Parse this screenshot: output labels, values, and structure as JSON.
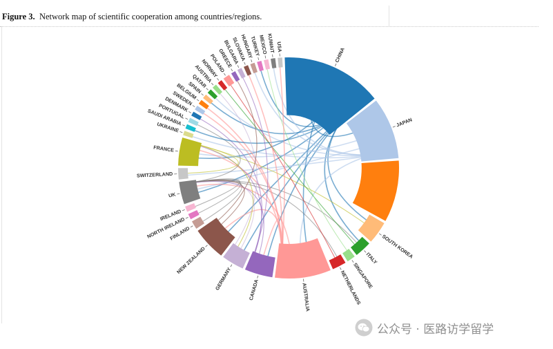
{
  "caption": {
    "figure_label": "Figure 3.",
    "text": "Network map of scientific cooperation among countries/regions."
  },
  "chart_data": {
    "type": "chord",
    "nodes": [
      {
        "name": "CHINA",
        "color": "#1f77b4",
        "weight": 18
      },
      {
        "name": "JAPAN",
        "color": "#aec7e8",
        "weight": 11
      },
      {
        "name": "",
        "color": "#ff7f0e",
        "weight": 11
      },
      {
        "name": "SOUTH KOREA",
        "color": "#ffbb78",
        "weight": 4
      },
      {
        "name": "ITALY",
        "color": "#2ca02c",
        "weight": 3
      },
      {
        "name": "SINGAPORE",
        "color": "#98df8a",
        "weight": 1.5
      },
      {
        "name": "NETHERLANDS",
        "color": "#d62728",
        "weight": 2.5
      },
      {
        "name": "AUSTRALIA",
        "color": "#ff9896",
        "weight": 10
      },
      {
        "name": "CANADA",
        "color": "#9467bd",
        "weight": 5
      },
      {
        "name": "GERMANY",
        "color": "#c5b0d5",
        "weight": 4
      },
      {
        "name": "NEW ZEALAND",
        "color": "#8c564b",
        "weight": 6
      },
      {
        "name": "FINLAND",
        "color": "#c49c94",
        "weight": 1.5
      },
      {
        "name": "NORTH IRELAND",
        "color": "#e377c2",
        "weight": 1
      },
      {
        "name": "IRELAND",
        "color": "#f7b6d2",
        "weight": 1
      },
      {
        "name": "UK",
        "color": "#7f7f7f",
        "weight": 4
      },
      {
        "name": "SWITZERLAND",
        "color": "#c7c7c7",
        "weight": 2
      },
      {
        "name": "FRANCE",
        "color": "#bcbd22",
        "weight": 5
      },
      {
        "name": "UKRAINE",
        "color": "#dbdb8d",
        "weight": 0.8
      },
      {
        "name": "SAUDI ARABIA",
        "color": "#17becf",
        "weight": 0.8
      },
      {
        "name": "PORTUGAL",
        "color": "#9edae5",
        "weight": 0.8
      },
      {
        "name": "DENMARK",
        "color": "#1f77b4",
        "weight": 0.8
      },
      {
        "name": "SWEDEN",
        "color": "#aec7e8",
        "weight": 0.8
      },
      {
        "name": "BELGIUM",
        "color": "#ff7f0e",
        "weight": 0.8
      },
      {
        "name": "SPAIN",
        "color": "#ffbb78",
        "weight": 0.8
      },
      {
        "name": "QATAR",
        "color": "#2ca02c",
        "weight": 0.8
      },
      {
        "name": "AUSTRIA",
        "color": "#98df8a",
        "weight": 0.8
      },
      {
        "name": "NORWAY",
        "color": "#d62728",
        "weight": 0.8
      },
      {
        "name": "POLAND",
        "color": "#ff9896",
        "weight": 1.2
      },
      {
        "name": "GREECE",
        "color": "#9467bd",
        "weight": 0.8
      },
      {
        "name": "BULGARIA",
        "color": "#c5b0d5",
        "weight": 0.8
      },
      {
        "name": "SLOVAKIA",
        "color": "#8c564b",
        "weight": 0.8
      },
      {
        "name": "HUNGARY",
        "color": "#c49c94",
        "weight": 0.8
      },
      {
        "name": "TURKEY",
        "color": "#e377c2",
        "weight": 0.8
      },
      {
        "name": "MEXICO",
        "color": "#f7b6d2",
        "weight": 0.8
      },
      {
        "name": "KUWAIT",
        "color": "#7f7f7f",
        "weight": 0.8
      },
      {
        "name": "USA",
        "color": "#c7c7c7",
        "weight": 0.8
      }
    ],
    "links": [
      [
        "CHINA",
        "JAPAN"
      ],
      [
        "CHINA",
        "AUSTRALIA"
      ],
      [
        "CHINA",
        "FRANCE"
      ],
      [
        "CHINA",
        "UK"
      ],
      [
        "CHINA",
        "CANADA"
      ],
      [
        "CHINA",
        "SOUTH KOREA"
      ],
      [
        "CHINA",
        "GERMANY"
      ],
      [
        "CHINA",
        "NEW ZEALAND"
      ],
      [
        "CHINA",
        "ITALY"
      ],
      [
        "JAPAN",
        "FRANCE"
      ],
      [
        "JAPAN",
        "UK"
      ],
      [
        "JAPAN",
        "AUSTRALIA"
      ],
      [
        "JAPAN",
        "SWITZERLAND"
      ],
      [
        "AUSTRALIA",
        "UK"
      ],
      [
        "AUSTRALIA",
        "NEW ZEALAND"
      ],
      [
        "AUSTRALIA",
        "FRANCE"
      ],
      [
        "AUSTRALIA",
        "CANADA"
      ],
      [
        "CANADA",
        "UK"
      ],
      [
        "CANADA",
        "FRANCE"
      ],
      [
        "GERMANY",
        "UK"
      ],
      [
        "GERMANY",
        "FRANCE"
      ],
      [
        "ITALY",
        "UK"
      ],
      [
        "NETHERLANDS",
        "UK"
      ],
      [
        "SOUTH KOREA",
        "FRANCE"
      ],
      [
        "FINLAND",
        "UK"
      ],
      [
        "NEW ZEALAND",
        "UK"
      ],
      [
        "SWITZERLAND",
        "FRANCE"
      ],
      [
        "POLAND",
        "NETHERLANDS"
      ],
      [
        "BELGIUM",
        "AUSTRALIA"
      ],
      [
        "NORWAY",
        "ITALY"
      ],
      [
        "SPAIN",
        "CHINA"
      ],
      [
        "QATAR",
        "JAPAN"
      ],
      [
        "SWEDEN",
        "AUSTRALIA"
      ],
      [
        "DENMARK",
        "CANADA"
      ],
      [
        "PORTUGAL",
        "UK"
      ],
      [
        "SAUDI ARABIA",
        "CHINA"
      ],
      [
        "UKRAINE",
        "JAPAN"
      ],
      [
        "AUSTRIA",
        "GERMANY"
      ],
      [
        "GREECE",
        "NEW ZEALAND"
      ],
      [
        "BULGARIA",
        "CANADA"
      ],
      [
        "SLOVAKIA",
        "AUSTRALIA"
      ],
      [
        "HUNGARY",
        "JAPAN"
      ],
      [
        "TURKEY",
        "CHINA"
      ],
      [
        "MEXICO",
        "SINGAPORE"
      ],
      [
        "KUWAIT",
        "JAPAN"
      ],
      [
        "USA",
        "AUSTRALIA"
      ],
      [
        "IRELAND",
        "UK"
      ],
      [
        "NORTH IRELAND",
        "UK"
      ]
    ]
  },
  "watermark": {
    "text": "公众号 · 医路访学留学",
    "icon": "wechat-icon"
  }
}
